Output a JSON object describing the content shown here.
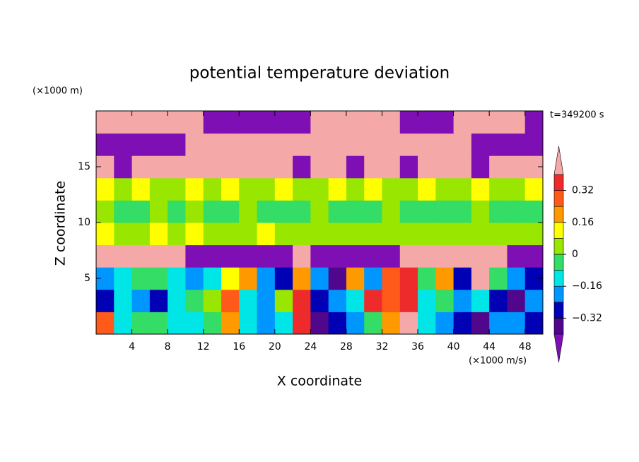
{
  "chart_data": {
    "type": "contour",
    "title": "potential temperature deviation",
    "xlabel": "X coordinate",
    "ylabel": "Z coordinate",
    "x_unit_label": "(×1000 m/s)",
    "y_unit_label": "(×1000 m)",
    "annotation": "t=349200 s",
    "xlim": [
      0,
      50
    ],
    "ylim": [
      0,
      20
    ],
    "xticks": [
      4,
      8,
      12,
      16,
      20,
      24,
      28,
      32,
      36,
      40,
      44,
      48
    ],
    "yticks": [
      5,
      10,
      15
    ],
    "x": [
      1,
      3,
      5,
      7,
      9,
      11,
      13,
      15,
      17,
      19,
      21,
      23,
      25,
      27,
      29,
      31,
      33,
      35,
      37,
      39,
      41,
      43,
      45,
      47,
      49
    ],
    "y": [
      1,
      3,
      5,
      7,
      9,
      11,
      13,
      15,
      17,
      19
    ],
    "z": [
      [
        0.28,
        -0.12,
        -0.04,
        -0.04,
        -0.12,
        -0.12,
        -0.04,
        0.2,
        -0.12,
        -0.2,
        -0.12,
        0.36,
        -0.36,
        -0.28,
        -0.2,
        -0.04,
        0.2,
        0.5,
        -0.12,
        -0.2,
        -0.28,
        -0.36,
        -0.2,
        -0.2,
        -0.28
      ],
      [
        -0.28,
        -0.12,
        -0.2,
        -0.28,
        -0.12,
        -0.04,
        0.04,
        0.28,
        -0.12,
        -0.2,
        0.04,
        0.36,
        -0.28,
        -0.2,
        -0.12,
        0.36,
        0.28,
        0.36,
        -0.12,
        -0.04,
        -0.2,
        -0.12,
        -0.28,
        -0.36,
        -0.2
      ],
      [
        -0.2,
        -0.12,
        -0.04,
        -0.04,
        -0.12,
        -0.2,
        -0.12,
        0.12,
        0.2,
        -0.2,
        -0.28,
        0.2,
        -0.2,
        -0.36,
        0.2,
        -0.2,
        0.28,
        0.36,
        -0.04,
        0.2,
        -0.28,
        0.5,
        -0.04,
        -0.2,
        -0.28
      ],
      [
        0.5,
        0.5,
        0.5,
        0.5,
        0.5,
        -0.5,
        -0.5,
        -0.5,
        -0.5,
        -0.5,
        -0.5,
        0.5,
        -0.5,
        -0.5,
        -0.5,
        -0.5,
        -0.5,
        0.5,
        0.5,
        0.5,
        0.5,
        0.5,
        0.5,
        -0.5,
        -0.5
      ],
      [
        0.1,
        0.05,
        0.05,
        0.1,
        0.05,
        0.1,
        0.05,
        0.05,
        0.05,
        0.1,
        0.05,
        0.05,
        0.05,
        0.05,
        0.05,
        0.05,
        0.05,
        0.05,
        0.05,
        0.05,
        0.05,
        0.05,
        0.05,
        0.05,
        0.05
      ],
      [
        0.05,
        -0.04,
        -0.04,
        0.05,
        -0.04,
        0.05,
        -0.04,
        -0.04,
        0.05,
        -0.04,
        -0.04,
        -0.04,
        0.05,
        -0.04,
        -0.04,
        -0.04,
        0.05,
        -0.04,
        -0.04,
        -0.04,
        -0.04,
        0.05,
        -0.04,
        -0.04,
        -0.04
      ],
      [
        0.1,
        0.05,
        0.1,
        0.05,
        0.05,
        0.1,
        0.05,
        0.1,
        0.05,
        0.05,
        0.1,
        0.05,
        0.05,
        0.1,
        0.05,
        0.1,
        0.05,
        0.05,
        0.1,
        0.05,
        0.05,
        0.1,
        0.05,
        0.05,
        0.1
      ],
      [
        0.5,
        -0.5,
        0.5,
        0.5,
        0.5,
        0.5,
        0.5,
        0.5,
        0.5,
        0.5,
        0.5,
        -0.5,
        0.5,
        0.5,
        -0.5,
        0.5,
        0.5,
        -0.5,
        0.5,
        0.5,
        0.5,
        -0.5,
        0.5,
        0.5,
        0.5
      ],
      [
        -0.5,
        -0.5,
        -0.5,
        -0.5,
        -0.5,
        0.5,
        0.5,
        0.5,
        0.5,
        0.5,
        0.5,
        0.5,
        0.5,
        0.5,
        0.5,
        0.5,
        0.5,
        0.5,
        0.5,
        0.5,
        0.5,
        -0.5,
        -0.5,
        -0.5,
        -0.5
      ],
      [
        0.5,
        0.5,
        0.5,
        0.5,
        0.5,
        0.5,
        -0.5,
        -0.5,
        -0.5,
        -0.5,
        -0.5,
        -0.5,
        0.5,
        0.5,
        0.5,
        0.5,
        0.5,
        -0.5,
        -0.5,
        -0.5,
        0.5,
        0.5,
        0.5,
        0.5,
        -0.5
      ]
    ],
    "levels": [
      -0.4,
      -0.32,
      -0.24,
      -0.16,
      -0.08,
      0,
      0.08,
      0.16,
      0.24,
      0.32,
      0.4
    ],
    "colors": [
      "#7d0fb4",
      "#50078c",
      "#0000b4",
      "#0096ff",
      "#00e6e6",
      "#33dd66",
      "#99e600",
      "#ffff00",
      "#ff9900",
      "#ff5a1a",
      "#ee2b2b",
      "#f5a8a8"
    ],
    "clim": [
      -0.4,
      0.4
    ],
    "cticks": [
      {
        "value": -0.32,
        "label": "−0.32"
      },
      {
        "value": -0.16,
        "label": "−0.16"
      },
      0,
      0.16,
      0.32
    ]
  }
}
